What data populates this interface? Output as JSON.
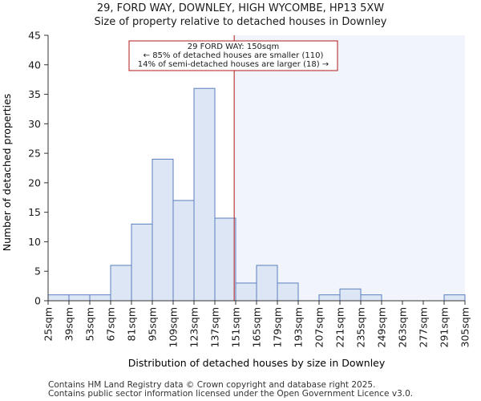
{
  "title_line1": "29, FORD WAY, DOWNLEY, HIGH WYCOMBE, HP13 5XW",
  "title_line2": "Size of property relative to detached houses in Downley",
  "footer_line1": "Contains HM Land Registry data © Crown copyright and database right 2025.",
  "footer_line2": "Contains public sector information licensed under the Open Government Licence v3.0.",
  "colors": {
    "bar_fill": "#dce6f5",
    "bar_stroke": "#5b7fbf",
    "highlight_bg": "#f1f4fb",
    "marker": "#b01818",
    "annotation_border": "#b01818"
  },
  "chart_data": {
    "type": "bar",
    "title": "29, FORD WAY, DOWNLEY, HIGH WYCOMBE, HP13 5XW — Size of property relative to detached houses in Downley",
    "xlabel": "Distribution of detached houses by size in Downley",
    "ylabel": "Number of detached properties",
    "x_tick_labels": [
      "25sqm",
      "39sqm",
      "53sqm",
      "67sqm",
      "81sqm",
      "95sqm",
      "109sqm",
      "123sqm",
      "137sqm",
      "151sqm",
      "165sqm",
      "179sqm",
      "193sqm",
      "207sqm",
      "221sqm",
      "235sqm",
      "249sqm",
      "263sqm",
      "277sqm",
      "291sqm",
      "305sqm"
    ],
    "bin_edges": [
      25,
      39,
      53,
      67,
      81,
      95,
      109,
      123,
      137,
      151,
      165,
      179,
      193,
      207,
      221,
      235,
      249,
      263,
      277,
      291,
      305
    ],
    "values": [
      1,
      1,
      1,
      6,
      13,
      24,
      17,
      36,
      14,
      3,
      6,
      3,
      0,
      1,
      2,
      1,
      0,
      0,
      0,
      1
    ],
    "ylim": [
      0,
      45
    ],
    "y_ticks": [
      0,
      5,
      10,
      15,
      20,
      25,
      30,
      35,
      40,
      45
    ],
    "grid": false,
    "marker_value": 150,
    "annotation": {
      "line1": "29 FORD WAY: 150sqm",
      "line2": "← 85% of detached houses are smaller (110)",
      "line3": "14% of semi-detached houses are larger (18) →"
    }
  }
}
